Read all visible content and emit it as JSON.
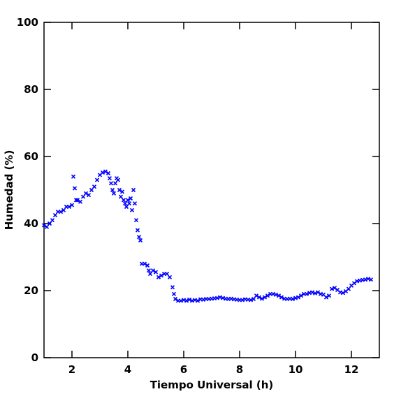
{
  "chart_data": {
    "type": "scatter",
    "x_label": "Tiempo Universal (h)",
    "y_label": "Humedad (%)",
    "xlim": [
      1,
      13
    ],
    "ylim": [
      0,
      100
    ],
    "xticks": [
      2,
      4,
      6,
      8,
      10,
      12
    ],
    "yticks": [
      0,
      20,
      40,
      60,
      80,
      100
    ],
    "color": "#0000ff",
    "x": [
      1.0,
      1.1,
      1.2,
      1.3,
      1.4,
      1.5,
      1.6,
      1.7,
      1.8,
      1.9,
      2.0,
      2.05,
      2.1,
      2.15,
      2.2,
      2.3,
      2.4,
      2.5,
      2.6,
      2.7,
      2.8,
      2.9,
      3.0,
      3.1,
      3.2,
      3.3,
      3.35,
      3.4,
      3.45,
      3.5,
      3.55,
      3.6,
      3.65,
      3.7,
      3.75,
      3.8,
      3.85,
      3.9,
      3.95,
      4.0,
      4.05,
      4.1,
      4.15,
      4.2,
      4.25,
      4.3,
      4.35,
      4.4,
      4.45,
      4.5,
      4.6,
      4.7,
      4.75,
      4.8,
      4.9,
      5.0,
      5.1,
      5.2,
      5.3,
      5.4,
      5.5,
      5.6,
      5.65,
      5.7,
      5.8,
      5.9,
      6.0,
      6.1,
      6.2,
      6.3,
      6.4,
      6.5,
      6.6,
      6.7,
      6.8,
      6.9,
      7.0,
      7.1,
      7.2,
      7.3,
      7.4,
      7.5,
      7.6,
      7.7,
      7.8,
      7.9,
      8.0,
      8.1,
      8.2,
      8.3,
      8.4,
      8.5,
      8.6,
      8.7,
      8.8,
      8.9,
      9.0,
      9.1,
      9.2,
      9.3,
      9.4,
      9.5,
      9.6,
      9.7,
      9.8,
      9.9,
      10.0,
      10.1,
      10.2,
      10.3,
      10.4,
      10.5,
      10.6,
      10.7,
      10.8,
      10.9,
      11.0,
      11.1,
      11.2,
      11.3,
      11.4,
      11.5,
      11.6,
      11.7,
      11.8,
      11.9,
      12.0,
      12.1,
      12.2,
      12.3,
      12.4,
      12.5,
      12.6,
      12.7
    ],
    "y": [
      39.5,
      39,
      40,
      41,
      42.5,
      43.5,
      43.5,
      44,
      45,
      45,
      45.5,
      54,
      50.5,
      47,
      47,
      46.5,
      48,
      49,
      48.5,
      50,
      51,
      53,
      54.5,
      55.2,
      55.5,
      55,
      53.5,
      52,
      50,
      49,
      52,
      53.5,
      53,
      50,
      48,
      49.5,
      47,
      46,
      45,
      47,
      46,
      47.5,
      44,
      50,
      46,
      41,
      38,
      36,
      35,
      28,
      28,
      27.5,
      26,
      25,
      26,
      25.5,
      24,
      24.5,
      25,
      25,
      24,
      21,
      19,
      17.5,
      17,
      17,
      17.2,
      17,
      17.3,
      17,
      17.2,
      17,
      17.4,
      17.3,
      17.5,
      17.5,
      17.6,
      17.7,
      17.8,
      18,
      17.8,
      17.6,
      17.5,
      17.6,
      17.4,
      17.3,
      17.2,
      17.2,
      17.4,
      17.3,
      17.2,
      17.5,
      18.5,
      18,
      17.6,
      18,
      18.5,
      19,
      19,
      18.8,
      18.5,
      18,
      17.6,
      17.5,
      17.6,
      17.5,
      17.8,
      18,
      18.5,
      19,
      19,
      19.3,
      19.5,
      19.2,
      19.5,
      19,
      18.8,
      18,
      18.5,
      20.5,
      20.8,
      20.2,
      19.5,
      19.3,
      19.8,
      20.5,
      21.5,
      22.2,
      22.8,
      23,
      23.2,
      23.3,
      23.5,
      23.3
    ]
  }
}
